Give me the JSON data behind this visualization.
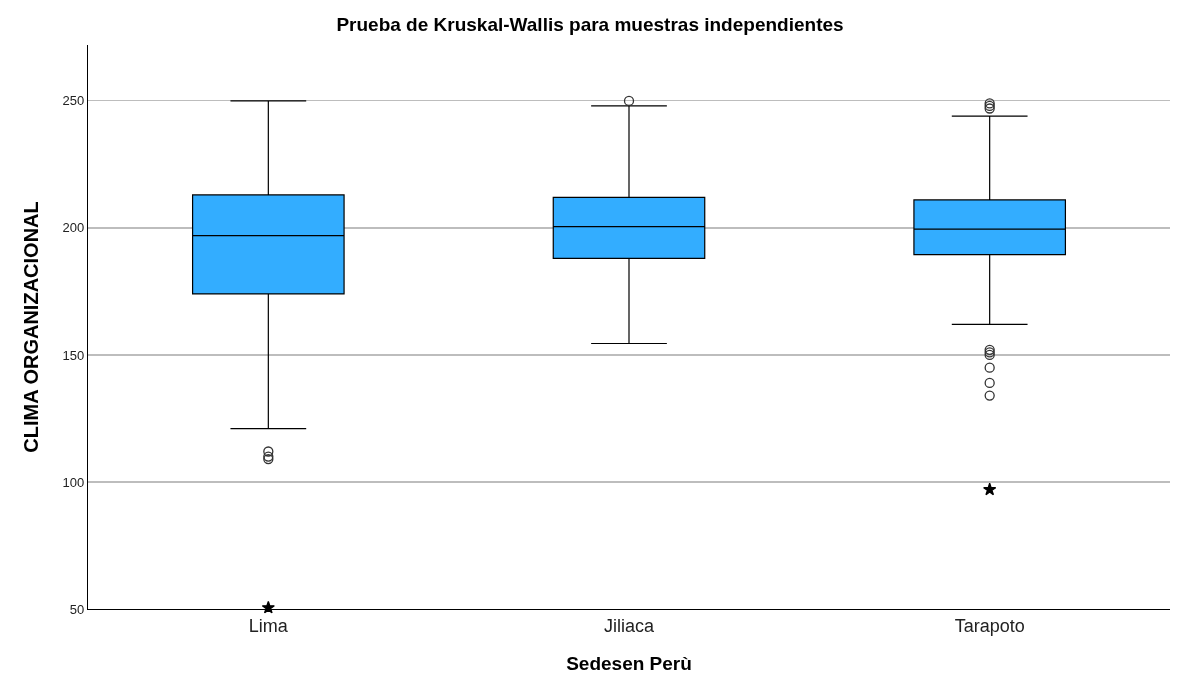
{
  "chart_data": {
    "type": "box",
    "title": "Prueba de Kruskal-Wallis para muestras independientes",
    "xlabel": "Sedesen Perù",
    "ylabel": "CLIMA ORGANIZACIONAL",
    "categories": [
      "Lima",
      "Jiliaca",
      "Tarapoto"
    ],
    "color": "#33adff",
    "marker": "circle",
    "boxes": [
      {
        "low": 121,
        "q1": 174,
        "median": 197,
        "q3": 213,
        "high": 250,
        "outliers": [
          112,
          110,
          109
        ]
      },
      {
        "low": 154.5,
        "q1": 188,
        "median": 200.5,
        "q3": 212,
        "high": 248,
        "outliers": [
          250
        ]
      },
      {
        "low": 162,
        "q1": 189.5,
        "median": 199.5,
        "q3": 211,
        "high": 244,
        "outliers": [
          249,
          248,
          247,
          152,
          151,
          150,
          145,
          139,
          134
        ]
      }
    ],
    "series": [
      {
        "type": "scatter",
        "marker": "star",
        "color": "#000000",
        "x": [
          "Lima",
          "Tarapoto"
        ],
        "values": [
          50.5,
          97
        ]
      }
    ],
    "ylim": [
      50,
      272
    ],
    "yticks": [
      50,
      100,
      150,
      200,
      250
    ],
    "grid": "y"
  }
}
